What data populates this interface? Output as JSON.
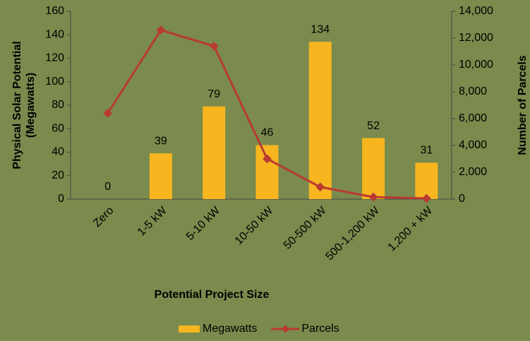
{
  "chart_data": {
    "type": "bar_line",
    "categories": [
      "Zero",
      "1-5 kW",
      "5-10 kW",
      "10-50 kW",
      "50-500 kW",
      "500-1,200 kW",
      "1,200 + kW"
    ],
    "series": [
      {
        "name": "Megawatts",
        "color": "#f7b51f",
        "type": "bar",
        "axis": "y",
        "values": [
          0,
          39,
          79,
          46,
          134,
          52,
          31
        ]
      },
      {
        "name": "Parcels",
        "color": "#b83a32",
        "type": "line",
        "axis": "y2",
        "values": [
          6400,
          12600,
          11400,
          3000,
          900,
          150,
          50
        ]
      }
    ],
    "ylabel": [
      "Physical Solar Potential",
      "(Megawatts)"
    ],
    "y2label": "Number of Parcels",
    "xlabel": "Potential Project Size",
    "ylim": [
      0,
      160
    ],
    "yticks": [
      0,
      20,
      40,
      60,
      80,
      100,
      120,
      140,
      160
    ],
    "y2lim": [
      0,
      14000
    ],
    "y2ticks": [
      0,
      {
        "value": 2000,
        "label": "2,000"
      },
      {
        "value": 4000,
        "label": "4,000"
      },
      {
        "value": 6000,
        "label": "6,000"
      },
      {
        "value": 8000,
        "label": "8,000"
      },
      {
        "value": 10000,
        "label": "10,000"
      },
      {
        "value": 12000,
        "label": "12,000"
      },
      {
        "value": 14000,
        "label": "14,000"
      }
    ],
    "legend": "bottom"
  }
}
